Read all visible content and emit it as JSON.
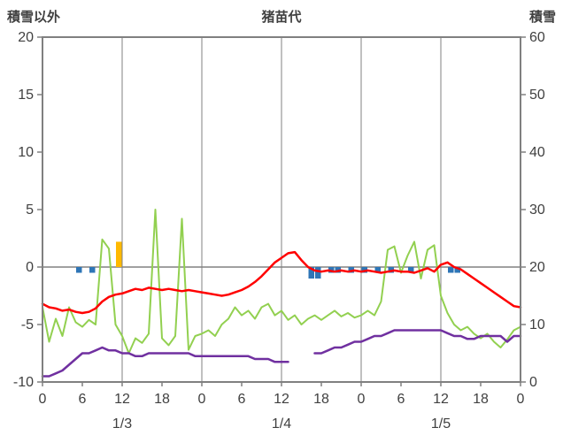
{
  "header": {
    "left_axis_title": "積雪以外",
    "station_title": "猪苗代",
    "right_axis_title": "積雪"
  },
  "colors": {
    "frame": "#808080",
    "grid": "#808080",
    "zero_line": "#808080",
    "text": "#404040",
    "background": "#FFFFFF",
    "temperature_red": "#FF0000",
    "wind_green": "#92D050",
    "snow_depth_purple": "#7030A0",
    "precipitation_blue": "#2E75B6",
    "sunshine_orange": "#FFB900"
  },
  "chart_data": {
    "type": "line",
    "title": "猪苗代",
    "x_hours_total": 72,
    "x_tick_interval_hours": 6,
    "x_tick_labels": [
      "0",
      "6",
      "12",
      "18",
      "0",
      "6",
      "12",
      "18",
      "0",
      "6",
      "12",
      "18",
      "0"
    ],
    "date_labels": [
      {
        "label": "1/3",
        "hour": 12
      },
      {
        "label": "1/4",
        "hour": 36
      },
      {
        "label": "1/5",
        "hour": 60
      }
    ],
    "y_left": {
      "title": "積雪以外",
      "min": -10,
      "max": 20,
      "ticks": [
        20,
        15,
        10,
        5,
        0,
        -5,
        -10
      ]
    },
    "y_right": {
      "title": "積雪",
      "min": 0,
      "max": 60,
      "ticks": [
        60,
        50,
        40,
        30,
        20,
        10,
        0
      ]
    },
    "grid": {
      "vertical_every_hours": 12,
      "zero_line": true,
      "horizontal_gridlines": false
    },
    "legend_position": "none",
    "bars": [
      {
        "name": "sunshine-orange-bar",
        "axis": "left",
        "color": "#FFB900",
        "direction": "up",
        "points": [
          {
            "hour": 11,
            "value": 2.2
          }
        ]
      },
      {
        "name": "precipitation-blue-bars",
        "axis": "left",
        "color": "#2E75B6",
        "direction": "down",
        "points": [
          {
            "hour": 5,
            "value": 0.5
          },
          {
            "hour": 7,
            "value": 0.5
          },
          {
            "hour": 40,
            "value": 1
          },
          {
            "hour": 41,
            "value": 1
          },
          {
            "hour": 43,
            "value": 0.5
          },
          {
            "hour": 44,
            "value": 0.5
          },
          {
            "hour": 46,
            "value": 0.5
          },
          {
            "hour": 48,
            "value": 0.5
          },
          {
            "hour": 50,
            "value": 0.5
          },
          {
            "hour": 52,
            "value": 0.5
          },
          {
            "hour": 55,
            "value": 0.5
          },
          {
            "hour": 61,
            "value": 0.5
          },
          {
            "hour": 62,
            "value": 0.5
          }
        ]
      }
    ],
    "series": [
      {
        "name": "wind-green",
        "axis": "left",
        "color": "#92D050",
        "width": 2,
        "values": [
          -3.5,
          -6.5,
          -4.5,
          -6.0,
          -3.5,
          -4.8,
          -5.2,
          -4.6,
          -5.0,
          2.4,
          1.6,
          -5.0,
          -6.0,
          -7.5,
          -6.2,
          -6.6,
          -5.8,
          5.0,
          -6.2,
          -6.8,
          -6.0,
          4.2,
          -7.2,
          -6.0,
          -5.8,
          -5.5,
          -6.0,
          -5.0,
          -4.5,
          -3.5,
          -4.2,
          -3.8,
          -4.5,
          -3.5,
          -3.2,
          -4.2,
          -3.8,
          -4.6,
          -4.2,
          -5.0,
          -4.5,
          -4.2,
          -4.6,
          -4.2,
          -3.8,
          -4.3,
          -4.0,
          -4.4,
          -4.2,
          -3.8,
          -4.2,
          -3.0,
          1.5,
          1.8,
          -0.5,
          1.0,
          2.2,
          -1.0,
          1.5,
          1.9,
          -2.5,
          -4.0,
          -5.0,
          -5.5,
          -5.2,
          -5.8,
          -6.2,
          -5.8,
          -6.5,
          -7.0,
          -6.3,
          -5.5,
          -5.2
        ]
      },
      {
        "name": "snow-depth-purple",
        "axis": "right",
        "color": "#7030A0",
        "width": 2.5,
        "values": [
          1,
          1,
          1.5,
          2,
          3,
          4,
          5,
          5,
          5.5,
          6,
          5.5,
          5.5,
          5,
          5,
          4.5,
          4.5,
          5,
          5,
          5,
          5,
          5,
          5,
          5,
          4.5,
          4.5,
          4.5,
          4.5,
          4.5,
          4.5,
          4.5,
          4.5,
          4.5,
          4,
          4,
          4,
          3.5,
          3.5,
          3.5,
          null,
          null,
          null,
          5,
          5,
          5.5,
          6,
          6,
          6.5,
          7,
          7,
          7.5,
          8,
          8,
          8.5,
          9,
          9,
          9,
          9,
          9,
          9,
          9,
          9,
          8.5,
          8,
          8,
          7.5,
          7.5,
          8,
          8,
          8,
          8,
          7,
          8,
          8
        ]
      },
      {
        "name": "temperature-red",
        "axis": "left",
        "color": "#FF0000",
        "width": 2.5,
        "values": [
          -3.2,
          -3.5,
          -3.6,
          -3.8,
          -3.7,
          -3.9,
          -4.0,
          -3.9,
          -3.6,
          -3.0,
          -2.6,
          -2.4,
          -2.3,
          -2.1,
          -1.9,
          -2.0,
          -1.8,
          -1.9,
          -2.0,
          -1.9,
          -2.0,
          -2.1,
          -2.0,
          -2.1,
          -2.2,
          -2.3,
          -2.4,
          -2.5,
          -2.4,
          -2.2,
          -2.0,
          -1.7,
          -1.3,
          -0.8,
          -0.2,
          0.4,
          0.8,
          1.2,
          1.3,
          0.6,
          0.0,
          -0.3,
          -0.4,
          -0.3,
          -0.4,
          -0.3,
          -0.4,
          -0.3,
          -0.4,
          -0.3,
          -0.4,
          -0.5,
          -0.4,
          -0.3,
          -0.4,
          -0.4,
          -0.5,
          -0.3,
          -0.1,
          -0.4,
          0.2,
          0.4,
          0.0,
          -0.2,
          -0.6,
          -1.0,
          -1.4,
          -1.8,
          -2.2,
          -2.6,
          -3.0,
          -3.4,
          -3.5
        ]
      }
    ]
  }
}
